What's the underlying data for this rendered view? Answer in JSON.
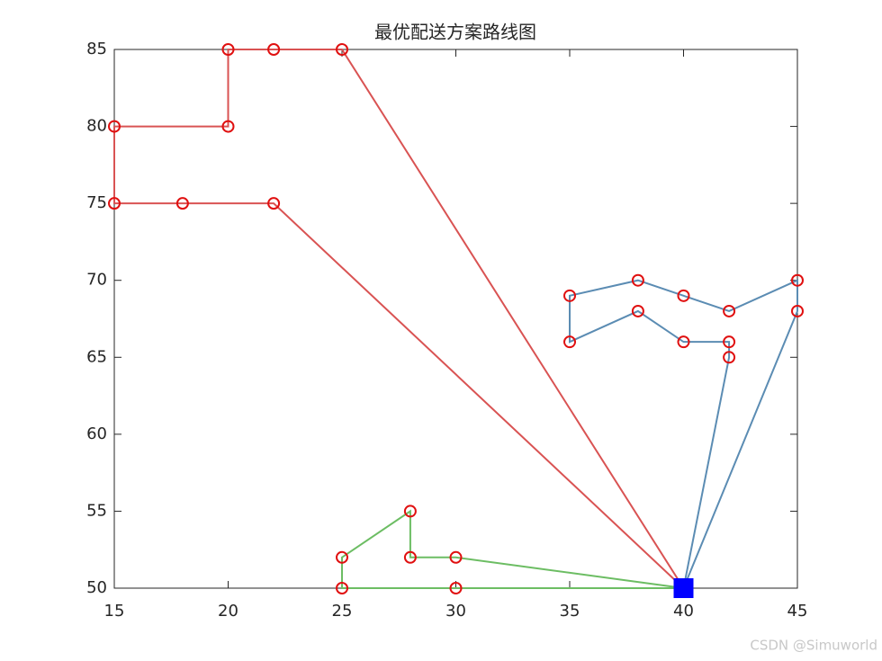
{
  "chart_data": {
    "type": "line",
    "title": "最优配送方案路线图",
    "xlim": [
      15,
      45
    ],
    "xticks": [
      15,
      20,
      25,
      30,
      35,
      40,
      45
    ],
    "ylim": [
      50,
      85
    ],
    "yticks": [
      50,
      55,
      60,
      65,
      70,
      75,
      80,
      85
    ],
    "grid": false,
    "marker_color": "#e01010",
    "series": [
      {
        "color": "#d95353",
        "marker": "circle",
        "x": [
          40,
          25,
          22,
          20,
          20,
          15,
          15,
          18,
          22,
          40
        ],
        "values": [
          50,
          85,
          85,
          85,
          80,
          80,
          75,
          75,
          75,
          50
        ]
      },
      {
        "color": "#5b8cb3",
        "marker": "circle",
        "x": [
          40,
          42,
          42,
          40,
          38,
          35,
          35,
          38,
          40,
          42,
          45,
          45,
          40
        ],
        "values": [
          50,
          65,
          66,
          66,
          68,
          66,
          69,
          70,
          69,
          68,
          70,
          68,
          50
        ]
      },
      {
        "color": "#6cbd63",
        "marker": "circle",
        "x": [
          40,
          30,
          28,
          28,
          25,
          25,
          30,
          40
        ],
        "values": [
          50,
          52,
          52,
          55,
          52,
          50,
          50,
          50
        ]
      },
      {
        "color": "#0000ff",
        "marker": "square",
        "x": [
          40
        ],
        "values": [
          50
        ]
      }
    ]
  },
  "watermark": "CSDN @Simuworld"
}
